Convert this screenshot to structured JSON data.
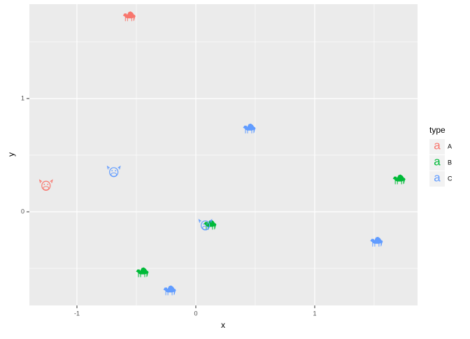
{
  "chart_data": {
    "type": "scatter",
    "xlabel": "x",
    "ylabel": "y",
    "xlim": [
      -1.4,
      1.865
    ],
    "ylim": [
      -0.827,
      1.833
    ],
    "xticks": [
      -1,
      0,
      1
    ],
    "yticks": [
      0,
      1
    ],
    "xminorticks": [
      -0.5,
      0.5,
      1.5
    ],
    "yminorticks": [
      -0.5,
      0.5,
      1.5
    ],
    "grid": true,
    "legend_title": "type",
    "legend_key_glyph": "a",
    "legend_position": "right",
    "series": [
      {
        "name": "A",
        "color": "#F8766D",
        "x": [
          -0.56,
          -1.26
        ],
        "values": [
          1.72,
          0.23
        ],
        "markers": [
          "camel",
          "cow"
        ]
      },
      {
        "name": "B",
        "color": "#00BA38",
        "x": [
          1.71,
          0.12,
          -0.45
        ],
        "values": [
          0.28,
          -0.12,
          -0.54
        ],
        "markers": [
          "camel",
          "camel",
          "camel"
        ]
      },
      {
        "name": "C",
        "color": "#619CFF",
        "x": [
          -0.69,
          0.45,
          0.08,
          1.52,
          -0.22
        ],
        "values": [
          0.35,
          0.73,
          -0.12,
          -0.27,
          -0.7
        ],
        "markers": [
          "cow",
          "camel",
          "cow",
          "camel",
          "camel"
        ]
      }
    ]
  }
}
